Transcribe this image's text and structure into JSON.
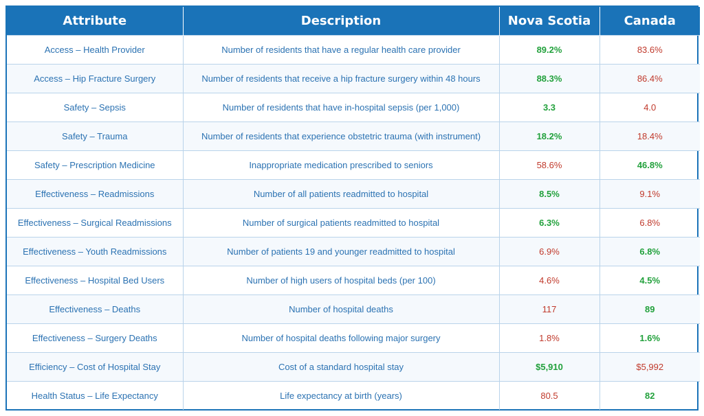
{
  "header": {
    "attribute": "Attribute",
    "description": "Description",
    "nova_scotia": "Nova Scotia",
    "canada": "Canada"
  },
  "colors": {
    "header_bg": "#1a73b8",
    "better": "#22a13c",
    "worse": "#c0392b",
    "text": "#2b72b2"
  },
  "rows": [
    {
      "attribute": "Access – Health Provider",
      "description": "Number of residents that have a regular health care provider",
      "ns": "89.2%",
      "ca": "83.6%",
      "better": "ns"
    },
    {
      "attribute": "Access – Hip Fracture Surgery",
      "description": "Number of residents that receive a hip fracture surgery within 48 hours",
      "ns": "88.3%",
      "ca": "86.4%",
      "better": "ns"
    },
    {
      "attribute": "Safety – Sepsis",
      "description": "Number of residents that have in-hospital sepsis (per 1,000)",
      "ns": "3.3",
      "ca": "4.0",
      "better": "ns"
    },
    {
      "attribute": "Safety – Trauma",
      "description": "Number of residents that experience obstetric trauma (with instrument)",
      "ns": "18.2%",
      "ca": "18.4%",
      "better": "ns"
    },
    {
      "attribute": "Safety – Prescription Medicine",
      "description": "Inappropriate medication prescribed to seniors",
      "ns": "58.6%",
      "ca": "46.8%",
      "better": "ca"
    },
    {
      "attribute": "Effectiveness – Readmissions",
      "description": "Number of all patients readmitted to hospital",
      "ns": "8.5%",
      "ca": "9.1%",
      "better": "ns"
    },
    {
      "attribute": "Effectiveness – Surgical Readmissions",
      "description": "Number of surgical patients readmitted to hospital",
      "ns": "6.3%",
      "ca": "6.8%",
      "better": "ns"
    },
    {
      "attribute": "Effectiveness – Youth Readmissions",
      "description": "Number of patients 19 and younger readmitted to hospital",
      "ns": "6.9%",
      "ca": "6.8%",
      "better": "ca"
    },
    {
      "attribute": "Effectiveness – Hospital Bed Users",
      "description": "Number of high users of hospital beds (per 100)",
      "ns": "4.6%",
      "ca": "4.5%",
      "better": "ca"
    },
    {
      "attribute": "Effectiveness – Deaths",
      "description": "Number of hospital deaths",
      "ns": "117",
      "ca": "89",
      "better": "ca"
    },
    {
      "attribute": "Effectiveness – Surgery Deaths",
      "description": "Number of hospital deaths following major surgery",
      "ns": "1.8%",
      "ca": "1.6%",
      "better": "ca"
    },
    {
      "attribute": "Efficiency – Cost of Hospital Stay",
      "description": "Cost of a standard hospital stay",
      "ns": "$5,910",
      "ca": "$5,992",
      "better": "ns"
    },
    {
      "attribute": "Health Status – Life Expectancy",
      "description": "Life expectancy at birth (years)",
      "ns": "80.5",
      "ca": "82",
      "better": "ca"
    }
  ]
}
